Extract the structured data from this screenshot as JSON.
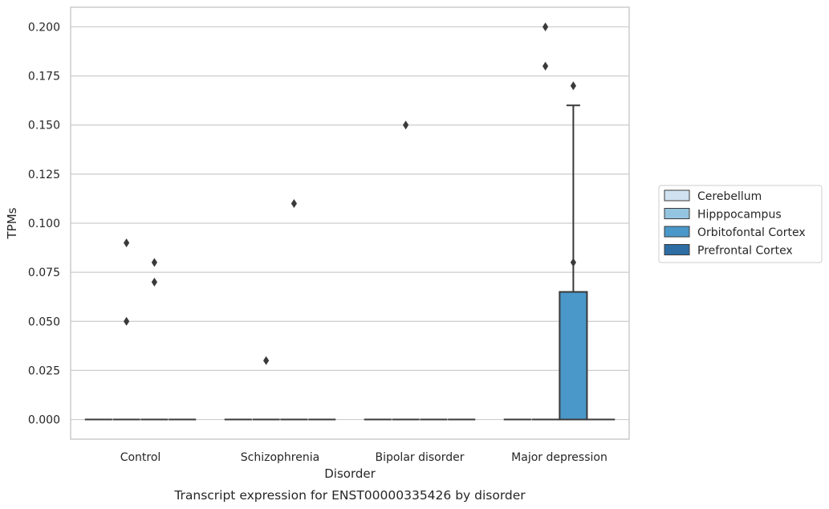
{
  "caption": "Transcript expression for ENST00000335426 by disorder",
  "chart_data": {
    "type": "box",
    "title": "",
    "xlabel": "Disorder",
    "ylabel": "TPMs",
    "ylim": [
      -0.01,
      0.21
    ],
    "yticks": [
      "0.000",
      "0.025",
      "0.050",
      "0.075",
      "0.100",
      "0.125",
      "0.150",
      "0.175",
      "0.200"
    ],
    "grid": "horizontal",
    "legend_position": "right",
    "categories": [
      "Control",
      "Schizophrenia",
      "Bipolar disorder",
      "Major depression"
    ],
    "series": [
      {
        "name": "Cerebellum",
        "color": "#d0e1f2",
        "boxes": [
          {
            "q1": 0,
            "median": 0,
            "q3": 0,
            "whisker_low": 0,
            "whisker_high": 0,
            "outliers": []
          },
          {
            "q1": 0,
            "median": 0,
            "q3": 0,
            "whisker_low": 0,
            "whisker_high": 0,
            "outliers": []
          },
          {
            "q1": 0,
            "median": 0,
            "q3": 0,
            "whisker_low": 0,
            "whisker_high": 0,
            "outliers": []
          },
          {
            "q1": 0,
            "median": 0,
            "q3": 0,
            "whisker_low": 0,
            "whisker_high": 0,
            "outliers": []
          }
        ]
      },
      {
        "name": "Hipppocampus",
        "color": "#94c4df",
        "boxes": [
          {
            "q1": 0,
            "median": 0,
            "q3": 0,
            "whisker_low": 0,
            "whisker_high": 0,
            "outliers": [
              0.09,
              0.05
            ]
          },
          {
            "q1": 0,
            "median": 0,
            "q3": 0,
            "whisker_low": 0,
            "whisker_high": 0,
            "outliers": [
              0.03
            ]
          },
          {
            "q1": 0,
            "median": 0,
            "q3": 0,
            "whisker_low": 0,
            "whisker_high": 0,
            "outliers": [
              0.15
            ]
          },
          {
            "q1": 0,
            "median": 0,
            "q3": 0,
            "whisker_low": 0,
            "whisker_high": 0,
            "outliers": [
              0.2,
              0.18
            ]
          }
        ]
      },
      {
        "name": "Orbitofontal Cortex",
        "color": "#4a98c9",
        "boxes": [
          {
            "q1": 0,
            "median": 0,
            "q3": 0,
            "whisker_low": 0,
            "whisker_high": 0,
            "outliers": [
              0.08,
              0.07
            ]
          },
          {
            "q1": 0,
            "median": 0,
            "q3": 0,
            "whisker_low": 0,
            "whisker_high": 0,
            "outliers": [
              0.11
            ]
          },
          {
            "q1": 0,
            "median": 0,
            "q3": 0,
            "whisker_low": 0,
            "whisker_high": 0,
            "outliers": []
          },
          {
            "q1": 0,
            "median": 0,
            "q3": 0.065,
            "whisker_low": 0,
            "whisker_high": 0.16,
            "outliers": [
              0.17,
              0.08
            ]
          }
        ]
      },
      {
        "name": "Prefrontal Cortex",
        "color": "#2e6da4",
        "boxes": [
          {
            "q1": 0,
            "median": 0,
            "q3": 0,
            "whisker_low": 0,
            "whisker_high": 0,
            "outliers": []
          },
          {
            "q1": 0,
            "median": 0,
            "q3": 0,
            "whisker_low": 0,
            "whisker_high": 0,
            "outliers": []
          },
          {
            "q1": 0,
            "median": 0,
            "q3": 0,
            "whisker_low": 0,
            "whisker_high": 0,
            "outliers": []
          },
          {
            "q1": 0,
            "median": 0,
            "q3": 0,
            "whisker_low": 0,
            "whisker_high": 0,
            "outliers": []
          }
        ]
      }
    ]
  }
}
